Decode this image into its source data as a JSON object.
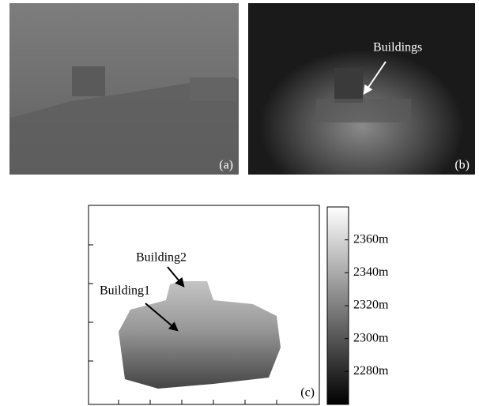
{
  "panels": [
    {
      "label": "(a)"
    },
    {
      "label": "(b)",
      "annotation": "Buildings"
    },
    {
      "label": "(c)",
      "annotations": [
        "Building2",
        "Building1"
      ]
    }
  ],
  "colorbar": {
    "lim": [
      2260,
      2380
    ],
    "ticks": [
      {
        "value": 2360,
        "label": "2360m"
      },
      {
        "value": 2340,
        "label": "2340m"
      },
      {
        "value": 2320,
        "label": "2320m"
      },
      {
        "value": 2300,
        "label": "2300m"
      },
      {
        "value": 2280,
        "label": "2280m"
      }
    ]
  }
}
